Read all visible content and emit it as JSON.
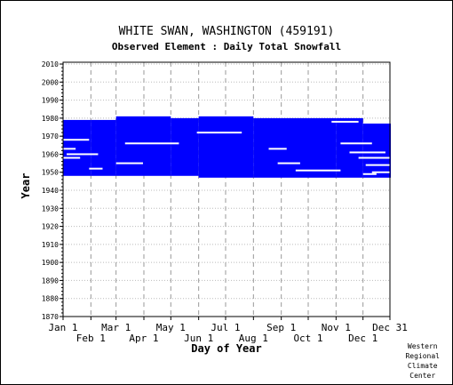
{
  "chart_data": {
    "type": "heatmap",
    "title": "WHITE SWAN, WASHINGTON   (459191)",
    "subtitle": "Observed Element : Daily Total Snowfall",
    "xlabel": "Day of Year",
    "ylabel": "Year",
    "ylim": [
      1870,
      2011
    ],
    "x_ticks_upper": [
      "Jan 1",
      "Mar 1",
      "May 1",
      "Jul 1",
      "Sep 1",
      "Nov 1",
      "Dec 31"
    ],
    "x_ticks_lower": [
      "Feb 1",
      "Apr 1",
      "Jun 1",
      "Aug 1",
      "Oct 1",
      "Dec 1"
    ],
    "y_ticks": [
      1870,
      1880,
      1890,
      1900,
      1910,
      1920,
      1930,
      1940,
      1950,
      1960,
      1970,
      1980,
      1990,
      2000,
      2010
    ],
    "grid": true,
    "series": [
      {
        "color": "#0000ff",
        "blocks": [
          {
            "x_start": 1,
            "x_end": 31,
            "y_start": 1948,
            "y_end": 1979
          },
          {
            "x_start": 32,
            "x_end": 59,
            "y_start": 1948,
            "y_end": 1979
          },
          {
            "x_start": 60,
            "x_end": 120,
            "y_start": 1948,
            "y_end": 1981
          },
          {
            "x_start": 121,
            "x_end": 151,
            "y_start": 1948,
            "y_end": 1980
          },
          {
            "x_start": 152,
            "x_end": 212,
            "y_start": 1947,
            "y_end": 1981
          },
          {
            "x_start": 213,
            "x_end": 304,
            "y_start": 1947,
            "y_end": 1980
          },
          {
            "x_start": 305,
            "x_end": 334,
            "y_start": 1947,
            "y_end": 1980
          },
          {
            "x_start": 335,
            "x_end": 365,
            "y_start": 1947,
            "y_end": 1977
          }
        ]
      }
    ],
    "gaps": [
      {
        "x_start": 1,
        "x_end": 30,
        "y": 1968
      },
      {
        "x_start": 1,
        "x_end": 15,
        "y": 1963
      },
      {
        "x_start": 5,
        "x_end": 40,
        "y": 1960
      },
      {
        "x_start": 1,
        "x_end": 20,
        "y": 1958
      },
      {
        "x_start": 30,
        "x_end": 45,
        "y": 1952
      },
      {
        "x_start": 60,
        "x_end": 90,
        "y": 1955
      },
      {
        "x_start": 70,
        "x_end": 130,
        "y": 1966
      },
      {
        "x_start": 150,
        "x_end": 200,
        "y": 1972
      },
      {
        "x_start": 230,
        "x_end": 250,
        "y": 1963
      },
      {
        "x_start": 240,
        "x_end": 265,
        "y": 1955
      },
      {
        "x_start": 260,
        "x_end": 310,
        "y": 1951
      },
      {
        "x_start": 300,
        "x_end": 330,
        "y": 1978
      },
      {
        "x_start": 310,
        "x_end": 345,
        "y": 1966
      },
      {
        "x_start": 320,
        "x_end": 360,
        "y": 1961
      },
      {
        "x_start": 330,
        "x_end": 365,
        "y": 1958
      },
      {
        "x_start": 338,
        "x_end": 365,
        "y": 1954
      },
      {
        "x_start": 345,
        "x_end": 365,
        "y": 1950
      },
      {
        "x_start": 335,
        "x_end": 350,
        "y": 1949
      }
    ]
  },
  "credit": {
    "line1": "Western",
    "line2": "Regional",
    "line3": "Climate",
    "line4": "Center"
  }
}
